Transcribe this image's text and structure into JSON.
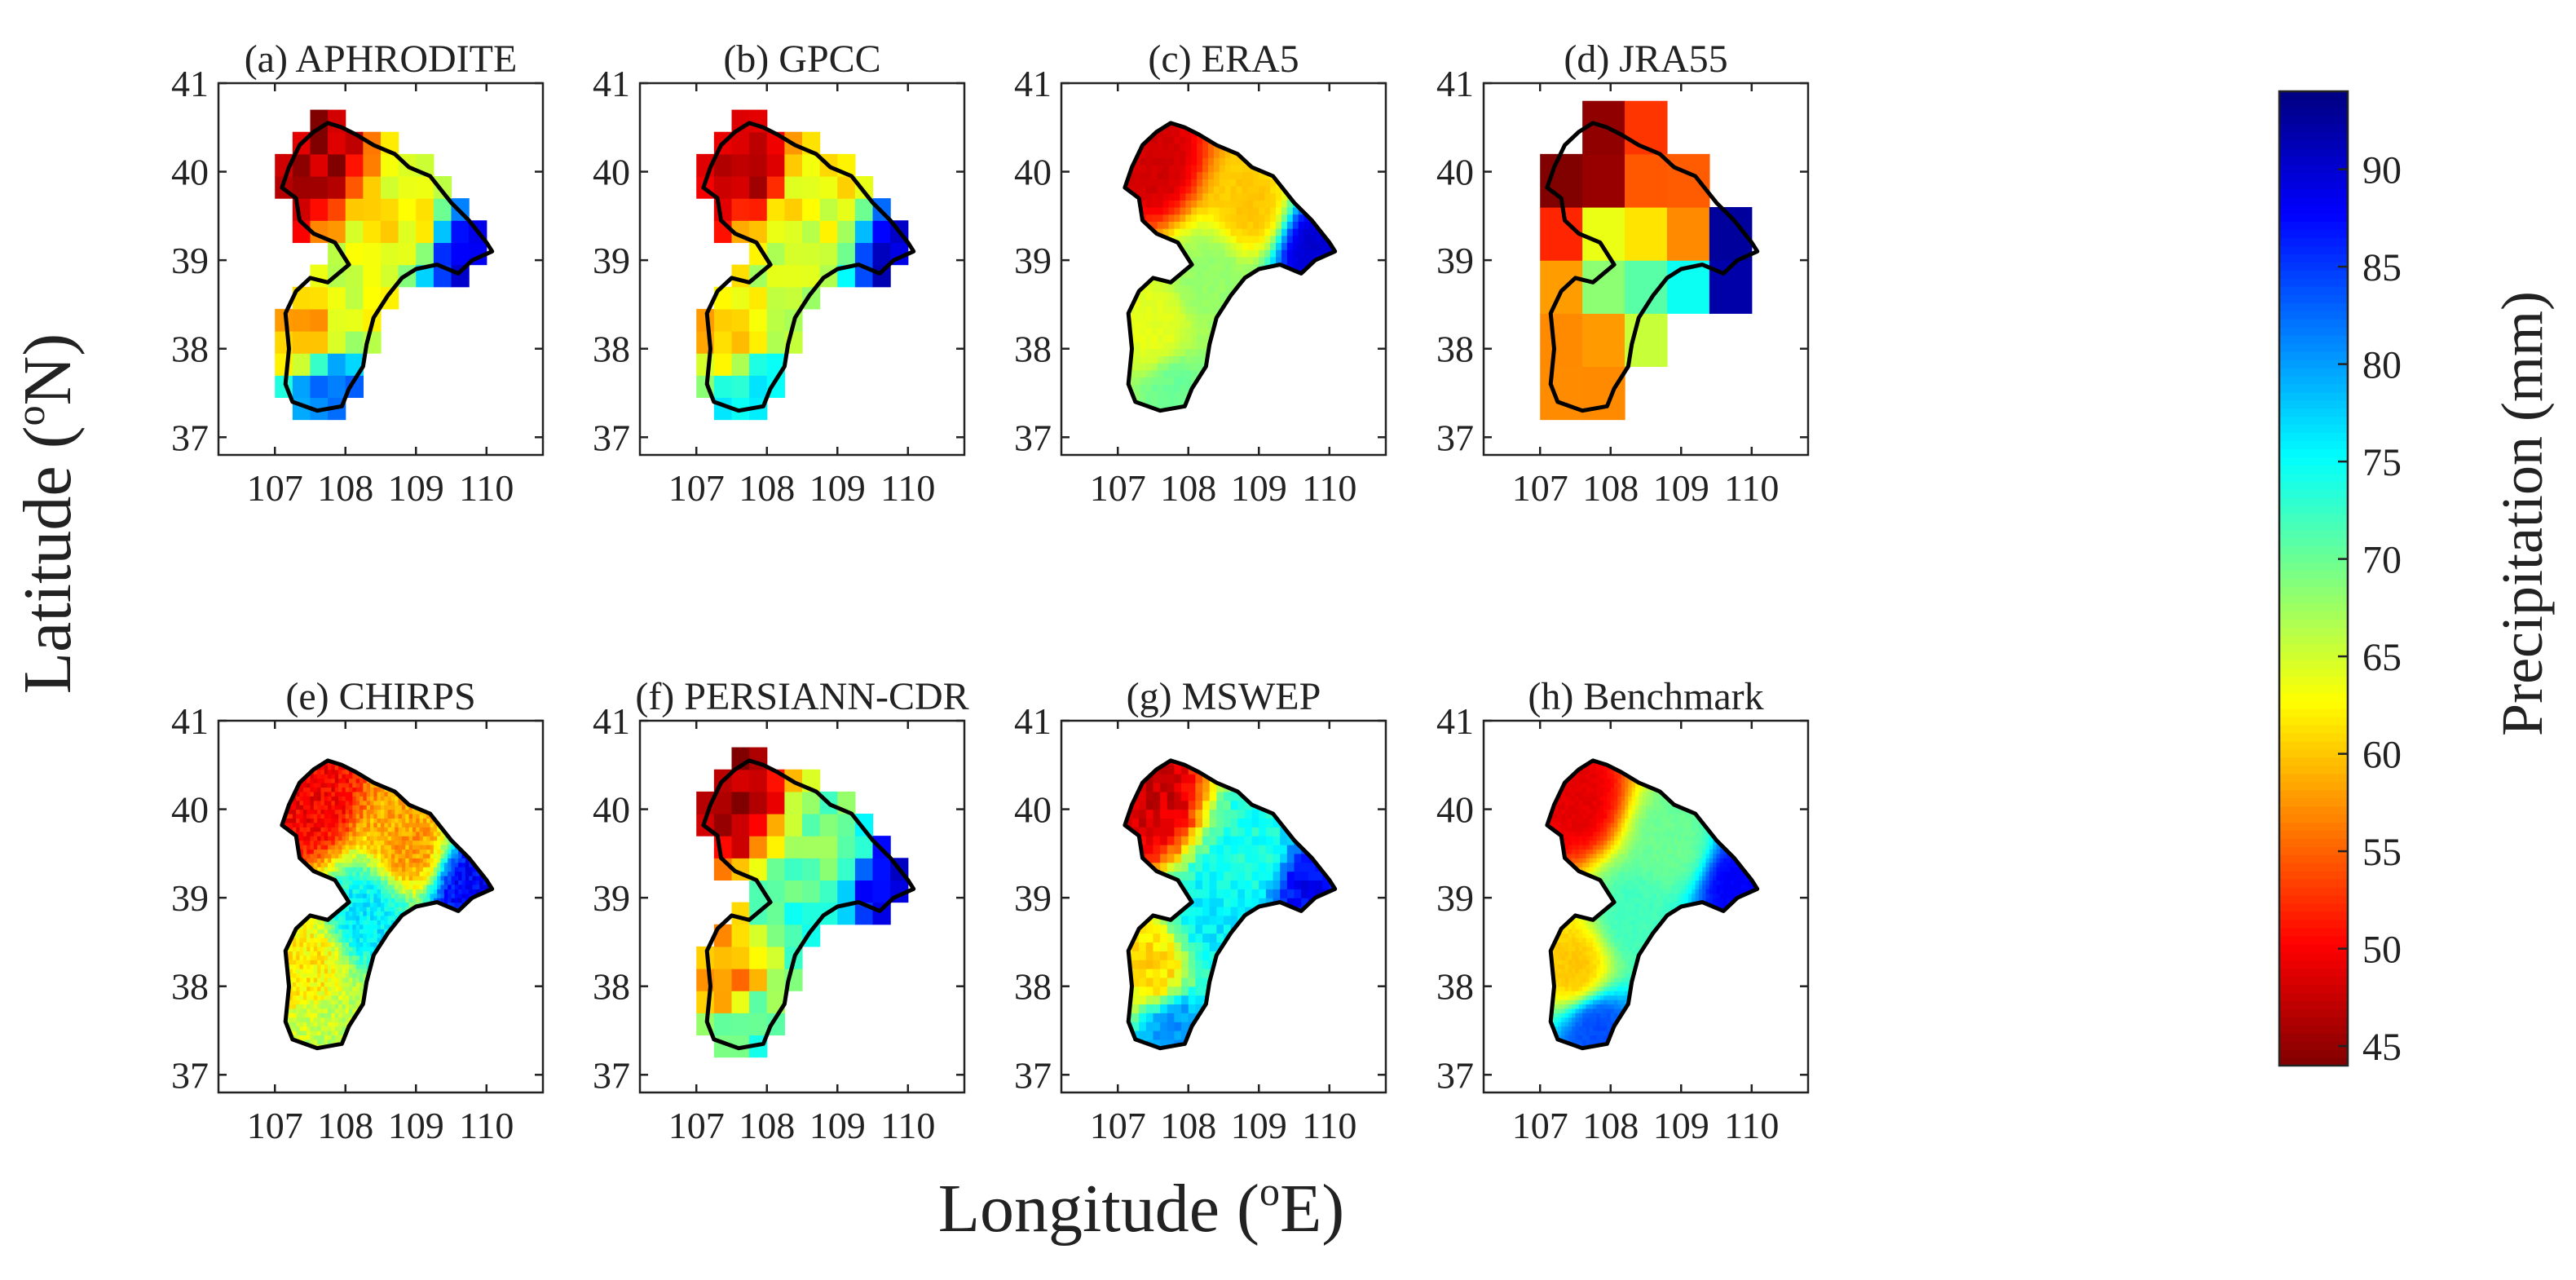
{
  "chart_data": {
    "type": "heatmap",
    "xlabel_prefix": "Longitude (",
    "xlabel_sup": "o",
    "xlabel_suffix": "E)",
    "ylabel_prefix": "Latitude (",
    "ylabel_sup": "o",
    "ylabel_suffix": "N)",
    "xlim": [
      106.2,
      110.8
    ],
    "ylim": [
      36.8,
      41.0
    ],
    "x_ticks": [
      107,
      108,
      109,
      110
    ],
    "y_ticks": [
      37,
      38,
      39,
      40,
      41
    ],
    "colorbar": {
      "label": "Precipitation (mm)",
      "min": 44,
      "max": 94,
      "ticks": [
        45,
        50,
        55,
        60,
        65,
        70,
        75,
        80,
        85,
        90
      ]
    },
    "basin_outline": [
      [
        107.55,
        40.45
      ],
      [
        107.75,
        40.55
      ],
      [
        107.95,
        40.5
      ],
      [
        108.15,
        40.42
      ],
      [
        108.4,
        40.3
      ],
      [
        108.7,
        40.2
      ],
      [
        108.9,
        40.05
      ],
      [
        109.2,
        39.95
      ],
      [
        109.5,
        39.65
      ],
      [
        109.75,
        39.45
      ],
      [
        110.0,
        39.2
      ],
      [
        110.08,
        39.1
      ],
      [
        109.8,
        39.0
      ],
      [
        109.6,
        38.85
      ],
      [
        109.3,
        38.95
      ],
      [
        109.0,
        38.9
      ],
      [
        108.8,
        38.8
      ],
      [
        108.6,
        38.6
      ],
      [
        108.4,
        38.35
      ],
      [
        108.3,
        38.05
      ],
      [
        108.25,
        37.8
      ],
      [
        108.05,
        37.55
      ],
      [
        107.95,
        37.35
      ],
      [
        107.6,
        37.3
      ],
      [
        107.25,
        37.4
      ],
      [
        107.15,
        37.6
      ],
      [
        107.2,
        38.0
      ],
      [
        107.15,
        38.4
      ],
      [
        107.3,
        38.65
      ],
      [
        107.5,
        38.8
      ],
      [
        107.75,
        38.75
      ],
      [
        108.05,
        38.95
      ],
      [
        107.85,
        39.2
      ],
      [
        107.55,
        39.3
      ],
      [
        107.35,
        39.45
      ],
      [
        107.3,
        39.7
      ],
      [
        107.1,
        39.82
      ],
      [
        107.2,
        40.05
      ],
      [
        107.35,
        40.3
      ]
    ],
    "panels": [
      {
        "title": "(a) APHRODITE",
        "grid_deg": 0.25,
        "fields": {
          "nw": 46,
          "ne": 62,
          "far_east": 90,
          "sw": 60,
          "south": 82,
          "center": 64,
          "blend": 0.0,
          "noise": 3
        }
      },
      {
        "title": "(b) GPCC",
        "grid_deg": 0.25,
        "fields": {
          "nw": 47,
          "ne": 63,
          "far_east": 91,
          "sw": 60,
          "south": 76,
          "center": 66,
          "blend": 0.0,
          "noise": 3
        }
      },
      {
        "title": "(c) ERA5",
        "grid_deg": 0.08,
        "fields": {
          "nw": 48,
          "ne": 60,
          "far_east": 90,
          "sw": 64,
          "south": 70,
          "center": 68,
          "blend": 1.0,
          "noise": 0.5
        }
      },
      {
        "title": "(d) JRA55",
        "grid_deg": 0.6,
        "fields": {
          "nw": 44,
          "ne": 54,
          "far_east": 93,
          "sw": 57,
          "south": 57,
          "center": 71,
          "blend": 0.0,
          "noise": 0
        }
      },
      {
        "title": "(e) CHIRPS",
        "grid_deg": 0.05,
        "fields": {
          "nw": 50,
          "ne": 58,
          "far_east": 88,
          "sw": 62,
          "south": 66,
          "center": 76,
          "blend": 1.0,
          "noise": 2.5
        }
      },
      {
        "title": "(f) PERSIANN-CDR",
        "grid_deg": 0.25,
        "fields": {
          "nw": 46,
          "ne": 70,
          "far_east": 90,
          "sw": 57,
          "south": 72,
          "center": 72,
          "blend": 0.0,
          "noise": 3
        }
      },
      {
        "title": "(g) MSWEP",
        "grid_deg": 0.1,
        "fields": {
          "nw": 48,
          "ne": 74,
          "far_east": 88,
          "sw": 61,
          "south": 80,
          "center": 76,
          "blend": 1.0,
          "noise": 2
        }
      },
      {
        "title": "(h) Benchmark",
        "grid_deg": 0.05,
        "fields": {
          "nw": 49,
          "ne": 70,
          "far_east": 88,
          "sw": 60,
          "south": 84,
          "center": 72,
          "blend": 1.0,
          "noise": 0.5
        }
      }
    ]
  }
}
